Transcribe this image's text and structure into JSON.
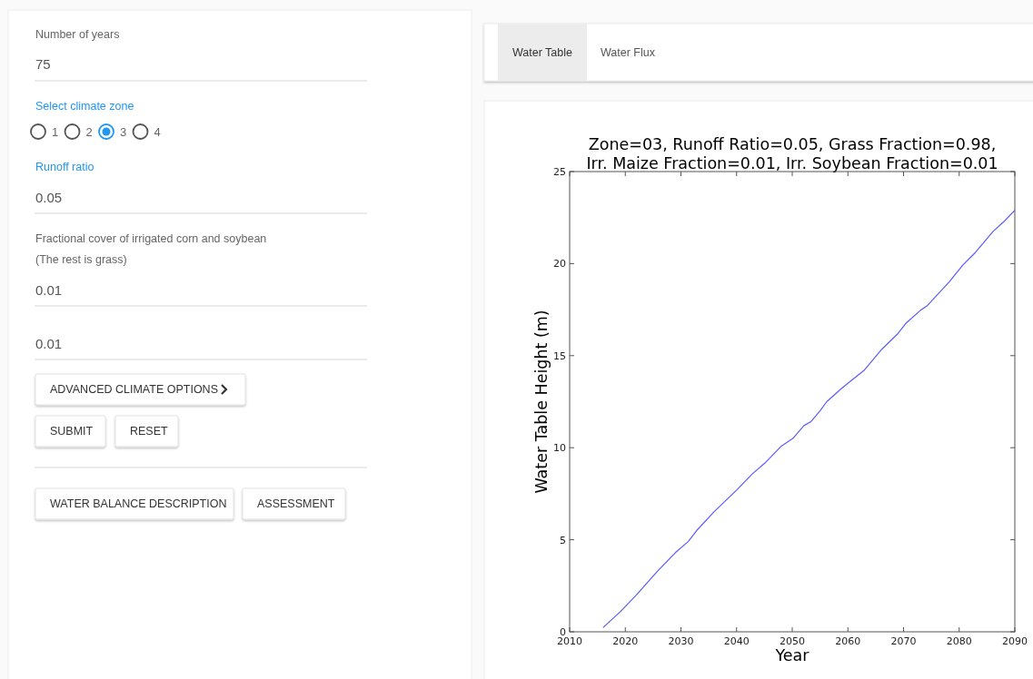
{
  "chart_data": {
    "type": "line",
    "title": "Zone=03, Runoff Ratio=0.05, Grass Fraction=0.98,\nIrr. Maize Fraction=0.01, Irr. Soybean Fraction=0.01",
    "xlabel": "Year",
    "ylabel": "Water Table Height (m)",
    "xlim": [
      2010,
      2090
    ],
    "xticks": [
      2010,
      2020,
      2030,
      2040,
      2050,
      2060,
      2070,
      2080,
      2090
    ],
    "ylim": [
      0,
      25
    ],
    "yticks": [
      0,
      5,
      10,
      15,
      20,
      25
    ],
    "grid": false,
    "marker": "none",
    "line_style": "solid",
    "series": [
      {
        "color": "#5a5aff",
        "x": [
          2016,
          2019.1,
          2022,
          2025.8,
          2029,
          2031.3,
          2033,
          2035.9,
          2040,
          2042.9,
          2045.2,
          2048.1,
          2050.1,
          2052.1,
          2053.3,
          2055,
          2056.2,
          2058.8,
          2060,
          2062.9,
          2066.1,
          2069,
          2070.4,
          2073,
          2074.2,
          2078.2,
          2080.6,
          2082.9,
          2086.1,
          2088.1,
          2090
        ],
        "values": [
          0.23,
          1.09,
          2.0,
          3.3,
          4.3,
          4.9,
          5.56,
          6.5,
          7.7,
          8.6,
          9.2,
          10.1,
          10.5,
          11.2,
          11.4,
          12.0,
          12.5,
          13.2,
          13.5,
          14.2,
          15.35,
          16.2,
          16.75,
          17.45,
          17.7,
          19.0,
          19.9,
          20.6,
          21.75,
          22.3,
          22.9
        ]
      }
    ],
    "annotations": [
      "Number of years",
      "75",
      "Select climate zone",
      "1",
      "2",
      "3",
      "4",
      "Runoff ratio",
      "0.05",
      "Fractional cover of irrigated corn and soybean",
      "(The rest is grass)",
      "0.01",
      "0.01",
      "ADVANCED CLIMATE OPTIONS",
      "SUBMIT",
      "RESET",
      "WATER BALANCE DESCRIPTION",
      "ASSESSMENT",
      "Water Table",
      "Water Flux"
    ]
  }
}
